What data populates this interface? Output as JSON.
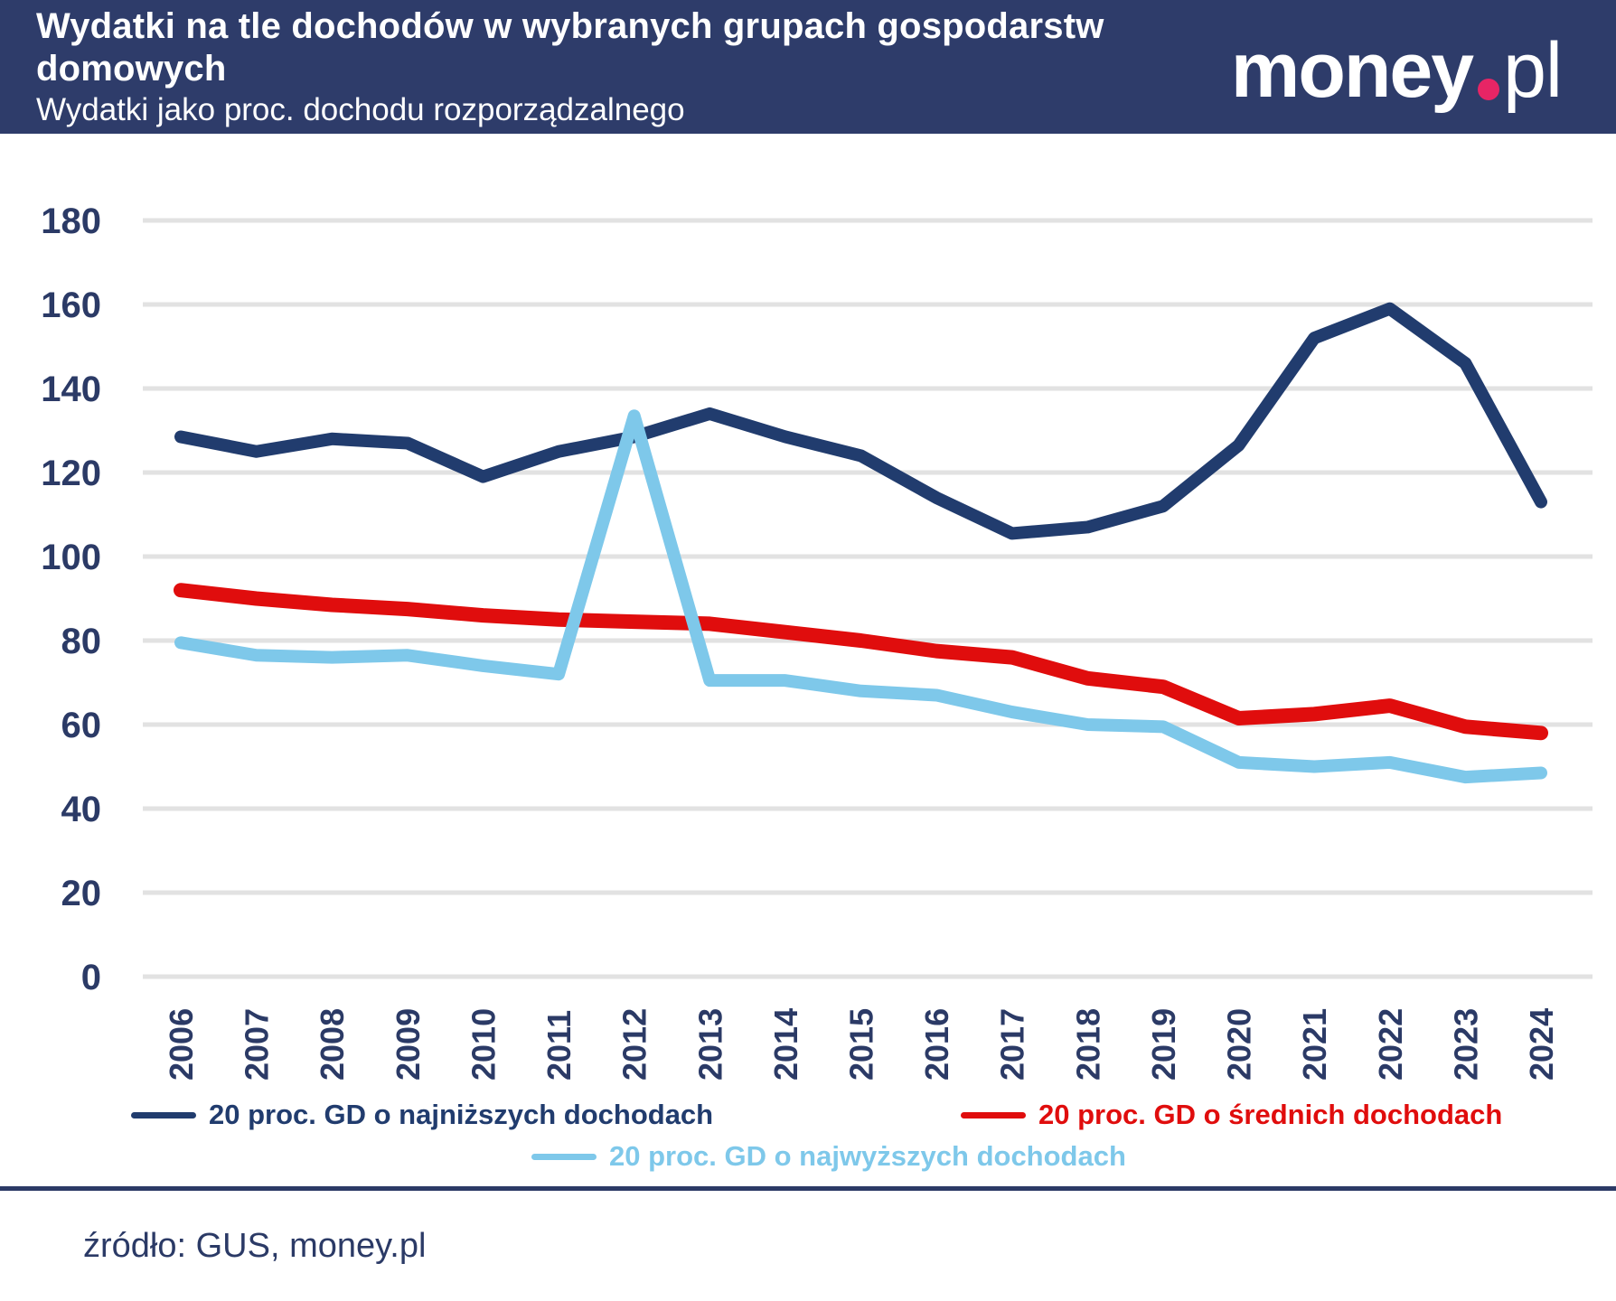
{
  "header": {
    "title": "Wydatki na tle dochodów w wybranych grupach gospodarstw domowych",
    "subtitle": "Wydatki jako proc. dochodu rozporządzalnego",
    "logo": {
      "money": "money",
      "pl": "pl",
      "dot_color": "#e72565"
    }
  },
  "chart_data": {
    "type": "line",
    "title": "Wydatki na tle dochodów w wybranych grupach gospodarstw domowych",
    "subtitle": "Wydatki jako proc. dochodu rozporządzalnego",
    "x": [
      2006,
      2007,
      2008,
      2009,
      2010,
      2011,
      2012,
      2013,
      2014,
      2015,
      2016,
      2017,
      2018,
      2019,
      2020,
      2021,
      2022,
      2023,
      2024
    ],
    "series": [
      {
        "name": "20 proc. GD o najniższych dochodach",
        "color": "#213c6e",
        "stroke_width": 14,
        "values": [
          128.5,
          125,
          128,
          127,
          119,
          125,
          128.5,
          134,
          128.5,
          124,
          114,
          105.5,
          107,
          112,
          126.5,
          152,
          159,
          146,
          113
        ]
      },
      {
        "name": "20 proc. GD o średnich dochodach",
        "color": "#e00d0d",
        "stroke_width": 16,
        "values": [
          92,
          90,
          88.5,
          87.5,
          86,
          85,
          84.5,
          84,
          82,
          80,
          77.5,
          76,
          71,
          69,
          61.5,
          62.5,
          64.5,
          59.5,
          58
        ]
      },
      {
        "name": "20 proc. GD o najwyższych dochodach",
        "color": "#7ec8ea",
        "stroke_width": 14,
        "values": [
          79.5,
          76.5,
          76,
          76.5,
          74,
          72,
          133.5,
          70.5,
          70.5,
          68,
          67,
          63,
          60,
          59.5,
          51,
          50,
          51,
          47.5,
          48.5
        ]
      }
    ],
    "ylim": [
      0,
      180
    ],
    "yticks": [
      0,
      20,
      40,
      60,
      80,
      100,
      120,
      140,
      160,
      180
    ],
    "grid": true,
    "gridline_color": "#e2e2e2",
    "legend_position": "bottom"
  },
  "footer": {
    "source": "źródło: GUS, money.pl"
  }
}
